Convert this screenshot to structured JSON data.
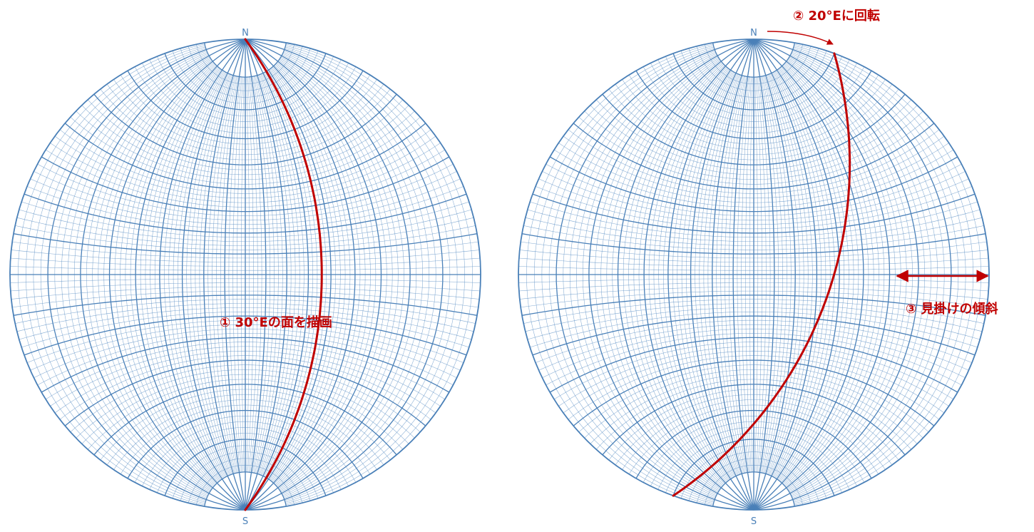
{
  "colors": {
    "net": "#5b8fc4",
    "net_major": "#4a80b8",
    "annotation": "#c00000",
    "background": "#ffffff"
  },
  "left_net": {
    "north_label": "N",
    "south_label": "S",
    "annotation": "① 30°Eの面を描画"
  },
  "right_net": {
    "north_label": "N",
    "south_label": "S",
    "rotation_annotation": "② 20°Eに回転",
    "apparent_dip_annotation": "③ 見掛けの傾斜"
  }
}
